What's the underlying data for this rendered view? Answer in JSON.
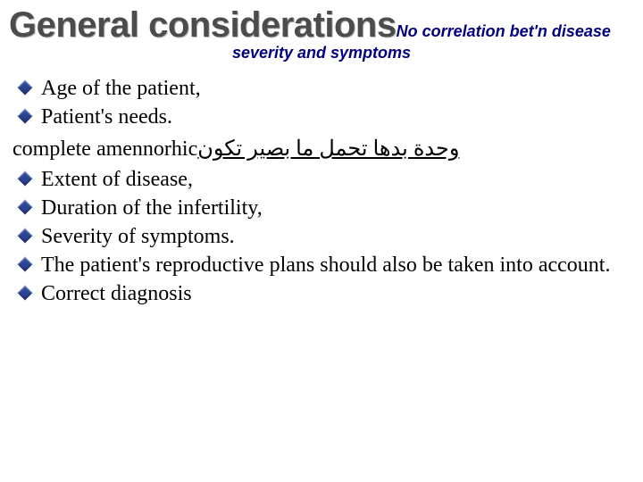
{
  "title": {
    "main": "General considerations",
    "sub1": "No correlation bet'n disease",
    "sub2": "severity  and symptoms"
  },
  "list1": [
    "Age of the patient,",
    "Patient's needs."
  ],
  "midline": {
    "left": "complete amennorhic",
    "arabic": "وحدة بدها تحمل ما بصير تكون"
  },
  "list2": [
    "Extent of disease,",
    "Duration of the infertility,",
    "Severity of symptoms.",
    "The patient's reproductive plans should also be taken into account.",
    "Correct diagnosis"
  ]
}
